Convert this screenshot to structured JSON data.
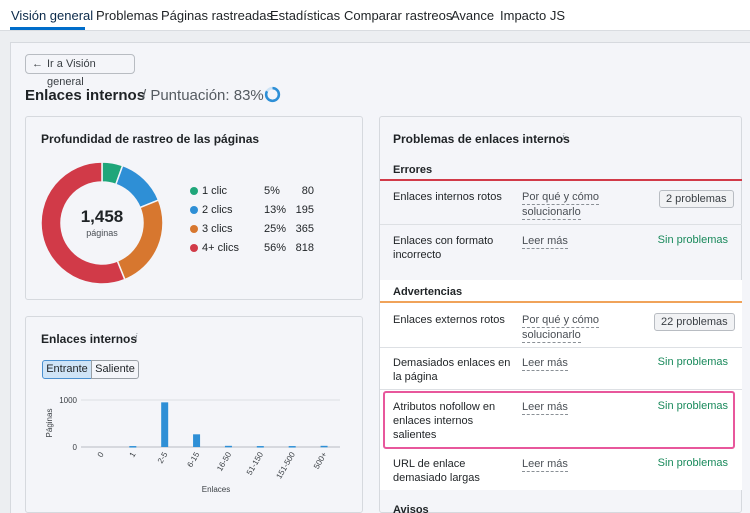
{
  "nav": {
    "tabs": [
      "Visión general",
      "Problemas",
      "Páginas rastreadas",
      "Estadísticas",
      "Comparar rastreos",
      "Avance",
      "Impacto JS"
    ],
    "active_tab": "Visión general"
  },
  "back_button": "Ir a Visión general",
  "page": {
    "title": "Enlaces internos",
    "score_label": "/ Puntuación: 83%",
    "score_value": 83
  },
  "depth_card": {
    "title": "Profundidad de rastreo de las páginas",
    "total": "1,458",
    "total_label": "páginas",
    "legend": [
      {
        "label": "1 clic",
        "pct": "5%",
        "count": "80",
        "color": "#1fa67a",
        "value": 80
      },
      {
        "label": "2 clics",
        "pct": "13%",
        "count": "195",
        "color": "#2e8fd6",
        "value": 195
      },
      {
        "label": "3 clics",
        "pct": "25%",
        "count": "365",
        "color": "#d7772f",
        "value": 365
      },
      {
        "label": "4+ clics",
        "pct": "56%",
        "count": "818",
        "color": "#d13a48",
        "value": 818
      }
    ]
  },
  "links_card": {
    "title": "Enlaces internos",
    "toggle": [
      "Entrante",
      "Saliente"
    ],
    "active_toggle": "Entrante",
    "y_label": "Páginas",
    "x_label": "Enlaces"
  },
  "chart_data": {
    "type": "bar",
    "categories": [
      "0",
      "1",
      "2-5",
      "6-15",
      "16-50",
      "51-150",
      "151-500",
      "500+"
    ],
    "values": [
      0,
      20,
      950,
      270,
      25,
      20,
      20,
      25
    ],
    "ylabel": "Páginas",
    "xlabel": "Enlaces",
    "yticks": [
      "1000",
      "0"
    ],
    "ylim": [
      0,
      1000
    ],
    "color": "#2e8fd6"
  },
  "problems": {
    "title": "Problemas de enlaces internos",
    "errors_header": "Errores",
    "warnings_header": "Advertencias",
    "notices_header": "Avisos",
    "errors": [
      {
        "name": "Enlaces internos rotos",
        "link": "Por qué y cómo solucionarlo",
        "link_l1": "Por qué y cómo",
        "link_l2": "solucionarlo",
        "status": "2 problemas"
      },
      {
        "name": "Enlaces con formato incorrecto",
        "link": "Leer más",
        "status": "Sin problemas"
      }
    ],
    "warnings": [
      {
        "name": "Enlaces externos rotos",
        "link": "Por qué y cómo solucionarlo",
        "link_l1": "Por qué y cómo",
        "link_l2": "solucionarlo",
        "status": "22 problemas"
      },
      {
        "name": "Demasiados enlaces en la página",
        "link": "Leer más",
        "status": "Sin problemas"
      },
      {
        "name": "Atributos nofollow en enlaces internos salientes",
        "link": "Leer más",
        "status": "Sin problemas"
      },
      {
        "name": "URL de enlace demasiado largas",
        "link": "Leer más",
        "status": "Sin problemas"
      }
    ],
    "errors_color": "#d13a48",
    "warnings_color": "#f0a35a",
    "ok_color": "#1a8a5c"
  }
}
